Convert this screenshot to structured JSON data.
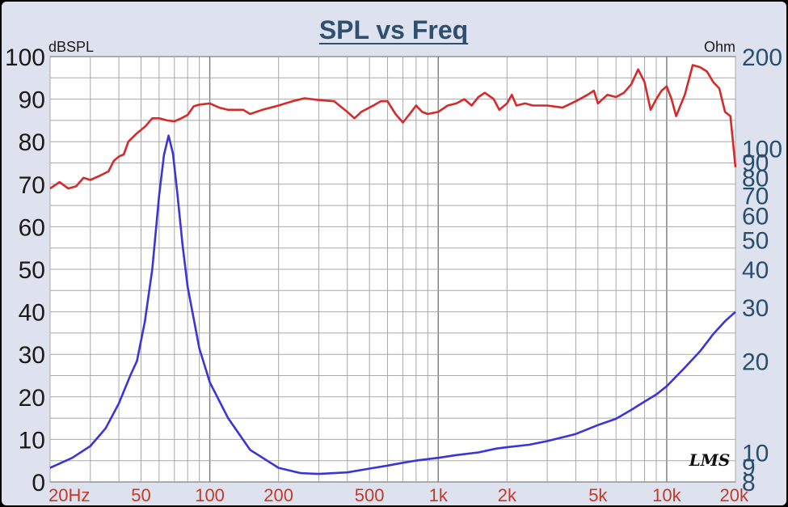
{
  "chart_data": {
    "type": "line",
    "title": "SPL vs Freq",
    "ylabel": "dBSPL",
    "y2label": "Ohm",
    "x_scale": "log",
    "y2_scale": "log",
    "xlim": [
      20,
      20000
    ],
    "ylim": [
      0,
      100
    ],
    "y2lim": [
      8,
      200
    ],
    "grid": true,
    "x_ticks": [
      {
        "value": 20,
        "label": "20Hz"
      },
      {
        "value": 50,
        "label": "50"
      },
      {
        "value": 100,
        "label": "100"
      },
      {
        "value": 200,
        "label": "200"
      },
      {
        "value": 500,
        "label": "500"
      },
      {
        "value": 1000,
        "label": "1k"
      },
      {
        "value": 2000,
        "label": "2k"
      },
      {
        "value": 5000,
        "label": "5k"
      },
      {
        "value": 10000,
        "label": "10k"
      },
      {
        "value": 20000,
        "label": "20k"
      }
    ],
    "y_ticks": [
      {
        "value": 0,
        "label": "0"
      },
      {
        "value": 10,
        "label": "10"
      },
      {
        "value": 20,
        "label": "20"
      },
      {
        "value": 30,
        "label": "30"
      },
      {
        "value": 40,
        "label": "40"
      },
      {
        "value": 50,
        "label": "50"
      },
      {
        "value": 60,
        "label": "60"
      },
      {
        "value": 70,
        "label": "70"
      },
      {
        "value": 80,
        "label": "80"
      },
      {
        "value": 90,
        "label": "90"
      },
      {
        "value": 100,
        "label": "100"
      }
    ],
    "y2_ticks": [
      {
        "value": 8,
        "label": "8"
      },
      {
        "value": 9,
        "label": "9"
      },
      {
        "value": 10,
        "label": "10"
      },
      {
        "value": 20,
        "label": "20"
      },
      {
        "value": 30,
        "label": "30"
      },
      {
        "value": 40,
        "label": "40"
      },
      {
        "value": 50,
        "label": "50"
      },
      {
        "value": 60,
        "label": "60"
      },
      {
        "value": 70,
        "label": "70"
      },
      {
        "value": 80,
        "label": "80"
      },
      {
        "value": 90,
        "label": "90"
      },
      {
        "value": 100,
        "label": "100"
      },
      {
        "value": 200,
        "label": "200"
      }
    ],
    "series": [
      {
        "axis": "left",
        "color": "#d42a2a",
        "points": [
          [
            20,
            69
          ],
          [
            22,
            70.5
          ],
          [
            24,
            69
          ],
          [
            26,
            69.5
          ],
          [
            28,
            71.5
          ],
          [
            30,
            71
          ],
          [
            33,
            72
          ],
          [
            36,
            73
          ],
          [
            38,
            75.5
          ],
          [
            40,
            76.5
          ],
          [
            42,
            77
          ],
          [
            44,
            80
          ],
          [
            48,
            82
          ],
          [
            52,
            83.5
          ],
          [
            56,
            85.5
          ],
          [
            60,
            85.5
          ],
          [
            65,
            85
          ],
          [
            70,
            84.8
          ],
          [
            75,
            85.5
          ],
          [
            80,
            86.3
          ],
          [
            85,
            88.3
          ],
          [
            90,
            88.7
          ],
          [
            100,
            89
          ],
          [
            110,
            88
          ],
          [
            120,
            87.5
          ],
          [
            140,
            87.5
          ],
          [
            150,
            86.5
          ],
          [
            170,
            87.5
          ],
          [
            200,
            88.5
          ],
          [
            230,
            89.5
          ],
          [
            260,
            90.2
          ],
          [
            300,
            89.8
          ],
          [
            350,
            89.5
          ],
          [
            400,
            87
          ],
          [
            430,
            85.5
          ],
          [
            460,
            87
          ],
          [
            520,
            88.5
          ],
          [
            560,
            89.5
          ],
          [
            600,
            89.5
          ],
          [
            650,
            86.5
          ],
          [
            700,
            84.5
          ],
          [
            750,
            86.5
          ],
          [
            800,
            88.5
          ],
          [
            850,
            87
          ],
          [
            900,
            86.5
          ],
          [
            1000,
            87
          ],
          [
            1100,
            88.5
          ],
          [
            1200,
            89
          ],
          [
            1300,
            90
          ],
          [
            1400,
            88.5
          ],
          [
            1500,
            90.5
          ],
          [
            1600,
            91.5
          ],
          [
            1750,
            90
          ],
          [
            1850,
            87.5
          ],
          [
            2000,
            89
          ],
          [
            2100,
            91
          ],
          [
            2200,
            88.5
          ],
          [
            2400,
            89
          ],
          [
            2600,
            88.5
          ],
          [
            3000,
            88.5
          ],
          [
            3500,
            88
          ],
          [
            4000,
            89.5
          ],
          [
            4500,
            91
          ],
          [
            4800,
            92
          ],
          [
            5000,
            89
          ],
          [
            5500,
            91
          ],
          [
            6000,
            90.5
          ],
          [
            6500,
            91.5
          ],
          [
            7000,
            93.5
          ],
          [
            7500,
            97
          ],
          [
            8000,
            94
          ],
          [
            8500,
            87.5
          ],
          [
            9000,
            90
          ],
          [
            9500,
            92
          ],
          [
            10000,
            93
          ],
          [
            10500,
            90
          ],
          [
            11000,
            86
          ],
          [
            12000,
            91
          ],
          [
            13000,
            98
          ],
          [
            14000,
            97.5
          ],
          [
            15000,
            96.5
          ],
          [
            16000,
            94
          ],
          [
            17000,
            92.5
          ],
          [
            18000,
            87
          ],
          [
            19000,
            86
          ],
          [
            19500,
            80
          ],
          [
            20000,
            74
          ]
        ]
      },
      {
        "axis": "right",
        "color": "#3b34d8",
        "points": [
          [
            20,
            8.9
          ],
          [
            25,
            9.6
          ],
          [
            30,
            10.5
          ],
          [
            35,
            12
          ],
          [
            40,
            14.5
          ],
          [
            45,
            18
          ],
          [
            48,
            20
          ],
          [
            52,
            27
          ],
          [
            56,
            40
          ],
          [
            60,
            70
          ],
          [
            63,
            95
          ],
          [
            66,
            110
          ],
          [
            69,
            96
          ],
          [
            72,
            72
          ],
          [
            76,
            48
          ],
          [
            80,
            35
          ],
          [
            90,
            22
          ],
          [
            100,
            17
          ],
          [
            120,
            13
          ],
          [
            150,
            10.2
          ],
          [
            200,
            8.9
          ],
          [
            250,
            8.55
          ],
          [
            300,
            8.5
          ],
          [
            350,
            8.55
          ],
          [
            400,
            8.6
          ],
          [
            500,
            8.85
          ],
          [
            600,
            9.05
          ],
          [
            700,
            9.25
          ],
          [
            800,
            9.4
          ],
          [
            1000,
            9.6
          ],
          [
            1200,
            9.8
          ],
          [
            1500,
            10
          ],
          [
            1800,
            10.3
          ],
          [
            2000,
            10.4
          ],
          [
            2500,
            10.6
          ],
          [
            3000,
            10.9
          ],
          [
            4000,
            11.5
          ],
          [
            5000,
            12.3
          ],
          [
            6000,
            12.9
          ],
          [
            7000,
            13.8
          ],
          [
            8000,
            14.7
          ],
          [
            9000,
            15.5
          ],
          [
            10000,
            16.5
          ],
          [
            12000,
            19
          ],
          [
            14000,
            21.5
          ],
          [
            16000,
            24.5
          ],
          [
            18000,
            27
          ],
          [
            20000,
            29
          ]
        ]
      }
    ]
  },
  "logo": "LMS"
}
